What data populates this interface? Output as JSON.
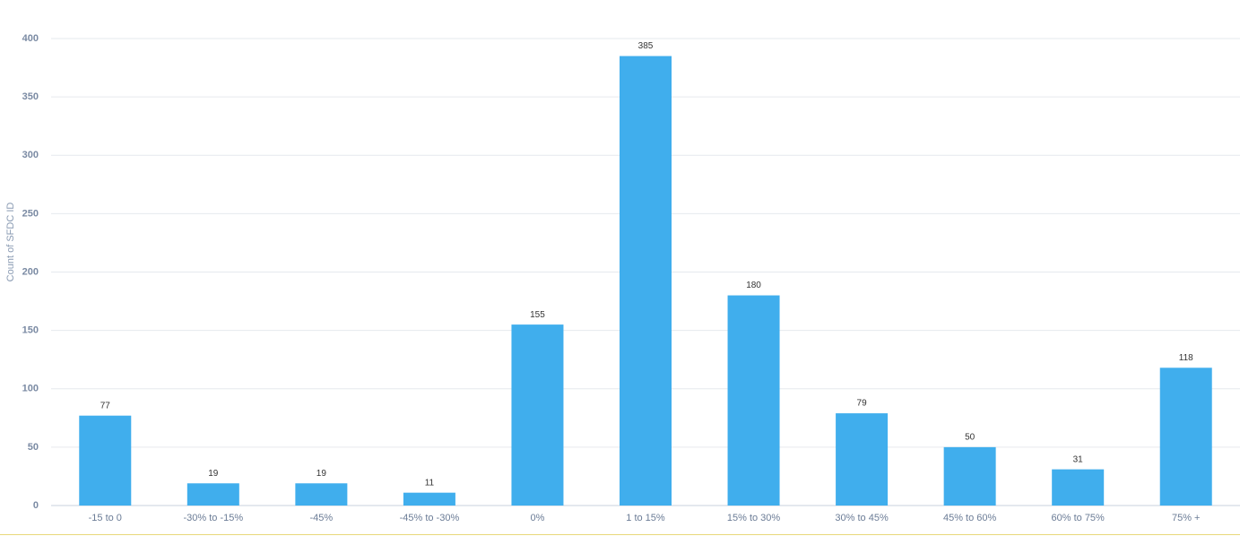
{
  "chart_data": {
    "type": "bar",
    "y_label": "Count of SFDC ID",
    "categories": [
      "-15 to 0",
      "-30% to -15%",
      "-45%",
      "-45% to -30%",
      "0%",
      "1 to 15%",
      "15% to 30%",
      "30% to 45%",
      "45% to 60%",
      "60% to 75%",
      "75% +"
    ],
    "values": [
      77,
      19,
      19,
      11,
      155,
      385,
      180,
      79,
      50,
      31,
      118
    ],
    "color": "#40aeed",
    "ylim": [
      0,
      400
    ],
    "yticks": [
      0,
      50,
      100,
      150,
      200,
      250,
      300,
      350,
      400
    ],
    "grid": true
  }
}
